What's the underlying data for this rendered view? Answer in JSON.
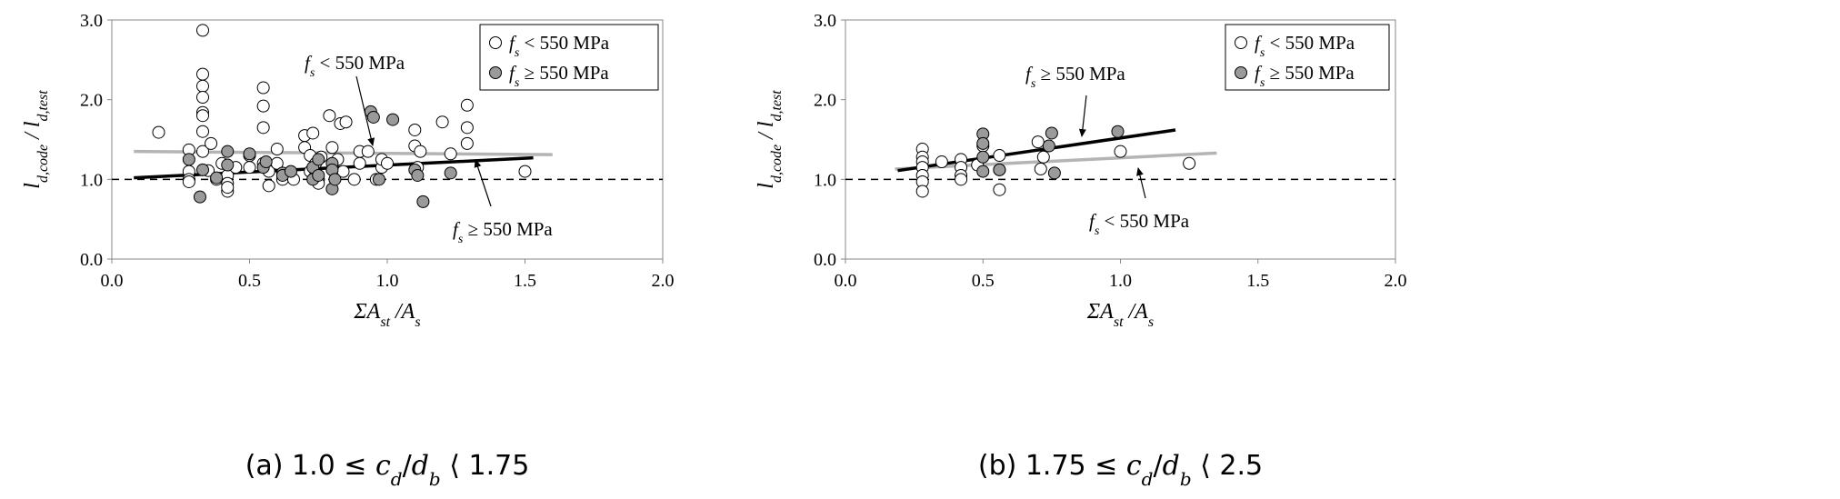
{
  "chart_data": [
    {
      "type": "scatter",
      "caption": "(a) 1.0 ≤ c_d/d_b ⟨ 1.75",
      "caption_parts": [
        "(a) 1.0 ≤ ",
        "c",
        "d",
        "/",
        "d",
        "b",
        " ⟨ 1.75"
      ],
      "xlabel_parts": [
        "ΣA",
        "st",
        " /A",
        "s"
      ],
      "ylabel_parts": [
        "l",
        "d,code",
        " / l",
        "d,test"
      ],
      "xlim": [
        0.0,
        2.0
      ],
      "ylim": [
        0.0,
        3.0
      ],
      "xticks": [
        "0.0",
        "0.5",
        "1.0",
        "1.5",
        "2.0"
      ],
      "yticks": [
        "0.0",
        "1.0",
        "2.0",
        "3.0"
      ],
      "reference_line": 1.0,
      "legend_position": "top-right",
      "series": [
        {
          "name": "f_s < 550 MPa",
          "label_parts": [
            "f",
            "s",
            " < 550 MPa"
          ],
          "marker": "open-circle",
          "color": "#ffffff",
          "x": [
            0.17,
            0.28,
            0.28,
            0.28,
            0.28,
            0.33,
            0.33,
            0.33,
            0.33,
            0.33,
            0.33,
            0.33,
            0.33,
            0.35,
            0.36,
            0.38,
            0.4,
            0.42,
            0.42,
            0.42,
            0.42,
            0.45,
            0.5,
            0.5,
            0.55,
            0.55,
            0.55,
            0.55,
            0.57,
            0.57,
            0.6,
            0.6,
            0.62,
            0.66,
            0.7,
            0.7,
            0.72,
            0.72,
            0.73,
            0.74,
            0.74,
            0.75,
            0.75,
            0.75,
            0.76,
            0.79,
            0.8,
            0.81,
            0.82,
            0.83,
            0.84,
            0.85,
            0.88,
            0.9,
            0.9,
            0.93,
            0.96,
            0.98,
            0.98,
            1.0,
            1.1,
            1.1,
            1.11,
            1.12,
            1.2,
            1.23,
            1.29,
            1.29,
            1.29,
            1.5
          ],
          "y": [
            1.59,
            1.37,
            1.1,
            1.0,
            0.97,
            2.87,
            2.32,
            2.17,
            2.03,
            1.84,
            1.8,
            1.6,
            1.35,
            1.11,
            1.45,
            1.0,
            1.2,
            1.05,
            0.95,
            0.85,
            0.9,
            1.15,
            1.3,
            1.15,
            2.15,
            1.92,
            1.65,
            1.2,
            1.1,
            0.92,
            1.38,
            1.2,
            1.0,
            1.0,
            1.55,
            1.4,
            1.3,
            1.1,
            1.58,
            1.2,
            1.05,
            1.0,
            1.0,
            0.95,
            1.28,
            1.8,
            1.4,
            1.1,
            1.25,
            1.7,
            1.1,
            1.72,
            1.0,
            1.35,
            1.2,
            1.35,
            1.0,
            1.15,
            1.25,
            1.2,
            1.62,
            1.42,
            1.15,
            1.35,
            1.72,
            1.32,
            1.93,
            1.65,
            1.45,
            1.1
          ],
          "trend": {
            "x": [
              0.08,
              1.6
            ],
            "y": [
              1.35,
              1.31
            ],
            "color": "#b4b4b4"
          }
        },
        {
          "name": "f_s ≥ 550 MPa",
          "label_parts": [
            "f",
            "s",
            " ≥ 550 MPa"
          ],
          "marker": "filled-circle",
          "color": "#9a9a9a",
          "x": [
            0.28,
            0.32,
            0.33,
            0.38,
            0.42,
            0.42,
            0.5,
            0.55,
            0.56,
            0.62,
            0.62,
            0.65,
            0.73,
            0.73,
            0.75,
            0.75,
            0.8,
            0.8,
            0.8,
            0.81,
            0.94,
            0.95,
            0.97,
            1.02,
            1.1,
            1.11,
            1.13,
            1.23
          ],
          "y": [
            1.25,
            0.78,
            1.12,
            1.02,
            1.35,
            1.18,
            1.32,
            1.15,
            1.22,
            1.08,
            1.05,
            1.1,
            1.15,
            1.0,
            1.25,
            1.05,
            1.2,
            1.12,
            0.88,
            1.0,
            1.85,
            1.78,
            1.0,
            1.75,
            1.12,
            1.05,
            0.72,
            1.08
          ],
          "trend": {
            "x": [
              0.08,
              1.53
            ],
            "y": [
              1.02,
              1.27
            ],
            "color": "#000000"
          }
        }
      ],
      "annotations": [
        {
          "label_parts": [
            "f",
            "s",
            " < 550 MPa"
          ],
          "points_to": "f_s < 550 MPa trend"
        },
        {
          "label_parts": [
            "f",
            "s",
            " ≥ 550 MPa"
          ],
          "points_to": "f_s ≥ 550 MPa trend"
        }
      ]
    },
    {
      "type": "scatter",
      "caption": "(b) 1.75 ≤ c_d/d_b ⟨ 2.5",
      "caption_parts": [
        "(b) 1.75 ≤ ",
        "c",
        "d",
        "/",
        "d",
        "b",
        " ⟨ 2.5"
      ],
      "xlabel_parts": [
        "ΣA",
        "st",
        " /A",
        "s"
      ],
      "ylabel_parts": [
        "l",
        "d,code",
        " / l",
        "d,test"
      ],
      "xlim": [
        0.0,
        2.0
      ],
      "ylim": [
        0.0,
        3.0
      ],
      "xticks": [
        "0.0",
        "0.5",
        "1.0",
        "1.5",
        "2.0"
      ],
      "yticks": [
        "0.0",
        "1.0",
        "2.0",
        "3.0"
      ],
      "reference_line": 1.0,
      "legend_position": "top-right",
      "series": [
        {
          "name": "f_s < 550 MPa",
          "label_parts": [
            "f",
            "s",
            " < 550 MPa"
          ],
          "marker": "open-circle",
          "color": "#ffffff",
          "x": [
            0.28,
            0.28,
            0.28,
            0.28,
            0.28,
            0.28,
            0.28,
            0.35,
            0.42,
            0.42,
            0.42,
            0.42,
            0.48,
            0.5,
            0.56,
            0.56,
            0.56,
            0.7,
            0.71,
            0.72,
            1.0,
            1.25
          ],
          "y": [
            1.38,
            1.28,
            1.22,
            1.15,
            1.05,
            0.97,
            0.85,
            1.22,
            1.25,
            1.15,
            1.05,
            1.0,
            1.18,
            1.42,
            1.3,
            1.12,
            0.87,
            1.47,
            1.13,
            1.28,
            1.35,
            1.2
          ],
          "trend": {
            "x": [
              0.18,
              1.35
            ],
            "y": [
              1.13,
              1.33
            ],
            "color": "#b4b4b4"
          }
        },
        {
          "name": "f_s ≥ 550 MPa",
          "label_parts": [
            "f",
            "s",
            " ≥ 550 MPa"
          ],
          "marker": "filled-circle",
          "color": "#9a9a9a",
          "x": [
            0.5,
            0.5,
            0.5,
            0.5,
            0.56,
            0.74,
            0.75,
            0.76,
            0.99
          ],
          "y": [
            1.57,
            1.45,
            1.28,
            1.1,
            1.12,
            1.42,
            1.58,
            1.08,
            1.6
          ],
          "trend": {
            "x": [
              0.19,
              1.2
            ],
            "y": [
              1.11,
              1.62
            ],
            "color": "#000000"
          }
        }
      ],
      "annotations": [
        {
          "label_parts": [
            "f",
            "s",
            " ≥ 550 MPa"
          ],
          "points_to": "f_s ≥ 550 MPa trend"
        },
        {
          "label_parts": [
            "f",
            "s",
            " < 550 MPa"
          ],
          "points_to": "f_s < 550 MPa trend"
        }
      ]
    }
  ]
}
